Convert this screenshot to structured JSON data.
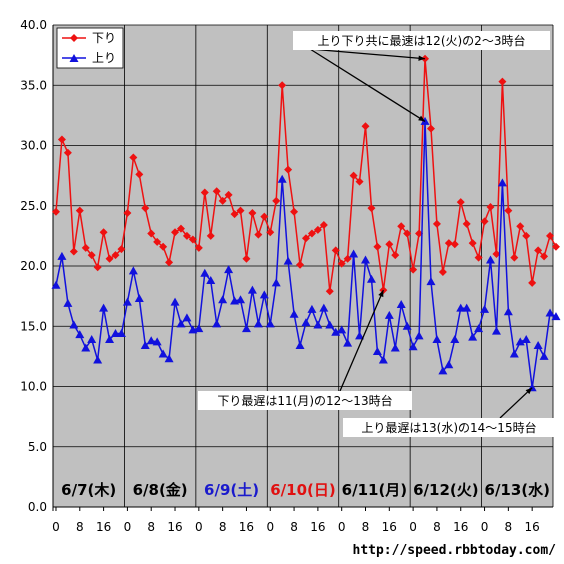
{
  "source": "http://speed.rbbtoday.com/",
  "chart_data": {
    "type": "line",
    "ylim": [
      0,
      40
    ],
    "y_ticks": [
      "0.0",
      "5.0",
      "10.0",
      "15.0",
      "20.0",
      "25.0",
      "30.0",
      "35.0",
      "40.0"
    ],
    "x_tick_labels": [
      "0",
      "8",
      "16",
      "0",
      "8",
      "16",
      "0",
      "8",
      "16",
      "0",
      "8",
      "16",
      "0",
      "8",
      "16",
      "0",
      "8",
      "16",
      "0",
      "8",
      "16"
    ],
    "grid": true,
    "legend": "top-left",
    "days": [
      {
        "label": "6/7(木)",
        "color": "#000000"
      },
      {
        "label": "6/8(金)",
        "color": "#000000"
      },
      {
        "label": "6/9(土)",
        "color": "#1a1acc"
      },
      {
        "label": "6/10(日)",
        "color": "#e01010"
      },
      {
        "label": "6/11(月)",
        "color": "#000000"
      },
      {
        "label": "6/12(火)",
        "color": "#000000"
      },
      {
        "label": "6/13(水)",
        "color": "#000000"
      }
    ],
    "series": [
      {
        "name": "下り",
        "color": "#ee1111",
        "marker": "diamond",
        "values": [
          24.5,
          30.5,
          29.4,
          21.2,
          24.6,
          21.5,
          20.9,
          19.9,
          22.8,
          20.6,
          20.9,
          21.4,
          24.4,
          29.0,
          27.6,
          24.8,
          22.7,
          22.0,
          21.6,
          20.3,
          22.8,
          23.1,
          22.5,
          22.2,
          21.5,
          26.1,
          22.5,
          26.2,
          25.4,
          25.9,
          24.3,
          24.6,
          20.6,
          24.4,
          22.6,
          24.1,
          22.8,
          25.4,
          35.0,
          28.0,
          24.5,
          20.1,
          22.3,
          22.7,
          23.0,
          23.4,
          17.9,
          21.3,
          20.2,
          20.6,
          27.5,
          27.0,
          31.6,
          24.8,
          21.6,
          18.0,
          21.8,
          20.9,
          23.3,
          22.7,
          19.7,
          22.7,
          37.2,
          31.4,
          23.5,
          19.5,
          21.9,
          21.8,
          25.3,
          23.5,
          21.9,
          20.7,
          23.7,
          24.9,
          21.0,
          35.3,
          24.6,
          20.7,
          23.3,
          22.5,
          18.6,
          21.3,
          20.8,
          22.5,
          21.6
        ]
      },
      {
        "name": "上り",
        "color": "#1111dd",
        "marker": "triangle",
        "values": [
          18.4,
          20.8,
          16.9,
          15.1,
          14.3,
          13.2,
          13.9,
          12.2,
          16.5,
          13.9,
          14.4,
          14.4,
          17.0,
          19.6,
          17.3,
          13.4,
          13.8,
          13.7,
          12.7,
          12.3,
          17.0,
          15.2,
          15.7,
          14.7,
          14.8,
          19.4,
          18.8,
          15.2,
          17.2,
          19.7,
          17.1,
          17.2,
          14.8,
          18.0,
          15.2,
          17.6,
          15.2,
          18.6,
          27.2,
          20.4,
          16.0,
          13.4,
          15.3,
          16.4,
          15.1,
          16.5,
          15.1,
          14.5,
          14.7,
          13.6,
          21.0,
          14.2,
          20.5,
          18.9,
          12.9,
          12.2,
          15.9,
          13.2,
          16.8,
          15.0,
          13.3,
          14.2,
          32.0,
          18.7,
          13.9,
          11.3,
          11.8,
          13.9,
          16.5,
          16.5,
          14.1,
          14.8,
          16.4,
          20.5,
          14.6,
          26.9,
          16.2,
          12.7,
          13.7,
          13.9,
          9.9,
          13.4,
          12.5,
          16.1,
          15.8
        ]
      }
    ],
    "annotations": [
      {
        "text": "上り下り共に最速は12(火)の2〜3時台"
      },
      {
        "text": "下り最遅は11(月)の12〜13時台"
      },
      {
        "text": "上り最遅は13(水)の14〜15時台"
      }
    ]
  }
}
